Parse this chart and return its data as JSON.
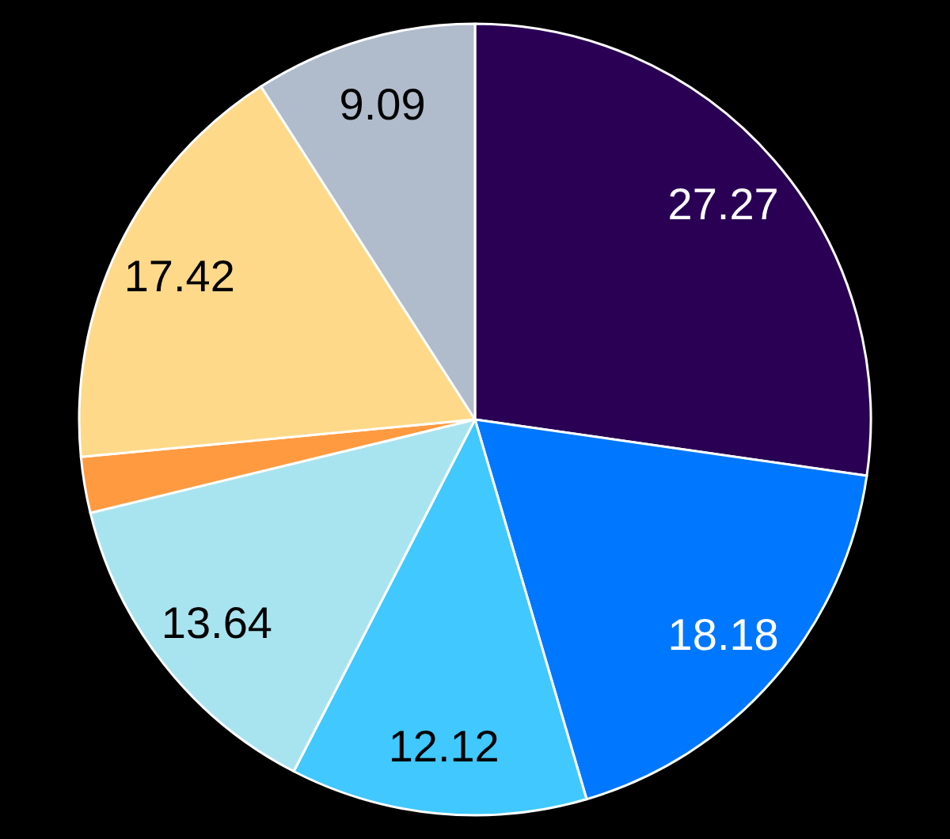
{
  "chart_data": {
    "type": "pie",
    "categories": [
      null,
      null,
      null,
      null,
      null,
      null,
      null
    ],
    "values": [
      27.27,
      18.18,
      12.12,
      13.64,
      2.28,
      17.42,
      9.09
    ],
    "colors": [
      "#2a0055",
      "#0077ff",
      "#40c8ff",
      "#a8e4f0",
      "#ff9a40",
      "#ffd98a",
      "#b0bccc"
    ],
    "value_labels": [
      "27.27",
      "18.18",
      "12.12",
      "13.64",
      null,
      "17.42",
      "9.09"
    ]
  }
}
